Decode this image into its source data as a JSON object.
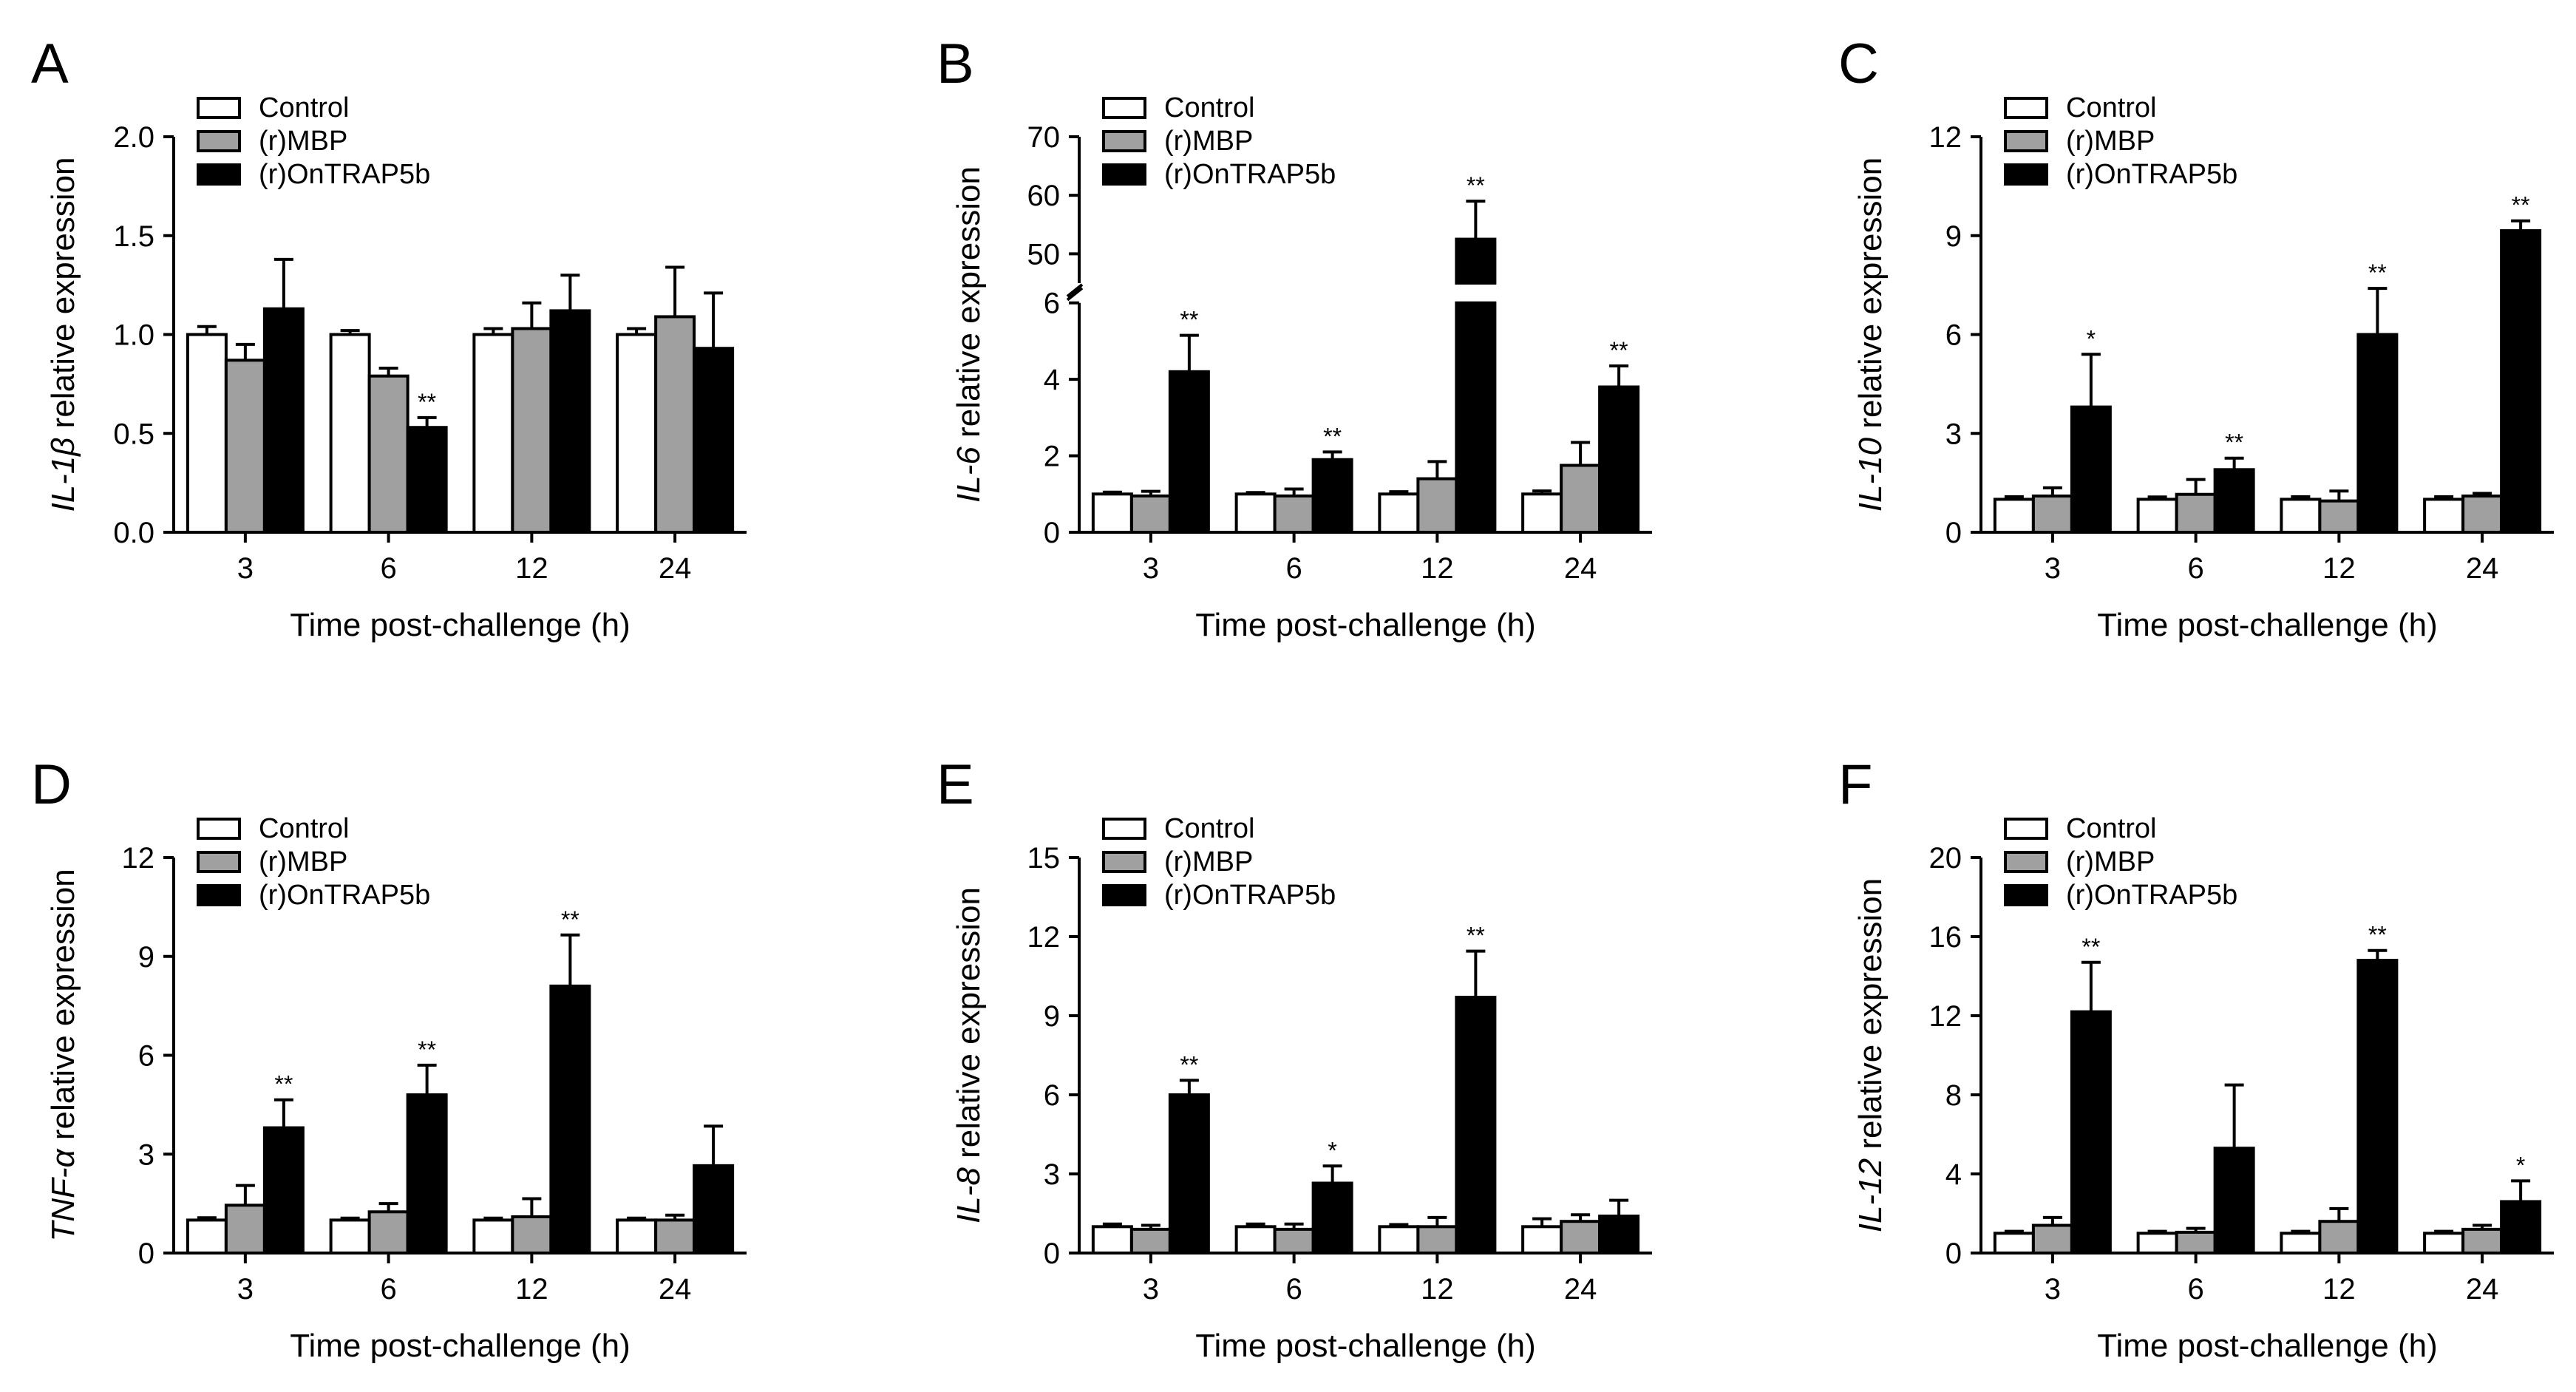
{
  "figure": {
    "common": {
      "legend": [
        "Control",
        "(r)MBP",
        "(r)OnTRAP5b"
      ],
      "xlabel": "Time post-challenge (h)",
      "categories": [
        "3",
        "6",
        "12",
        "24"
      ],
      "series_colors": [
        "#ffffff",
        "#a0a0a0",
        "#000000"
      ]
    }
  },
  "chart_data": [
    {
      "panel": "A",
      "type": "bar",
      "gene": "IL-1β",
      "ylabel_suffix": " relative expression",
      "title": "",
      "xlabel": "Time post-challenge (h)",
      "categories": [
        "3",
        "6",
        "12",
        "24"
      ],
      "ylim": [
        0,
        2.0
      ],
      "yticks": [
        "0.0",
        "0.5",
        "1.0",
        "1.5",
        "2.0"
      ],
      "broken": false,
      "series": [
        {
          "name": "Control",
          "values": [
            1.0,
            1.0,
            1.0,
            1.0
          ],
          "errors": [
            0.04,
            0.02,
            0.03,
            0.03
          ]
        },
        {
          "name": "(r)MBP",
          "values": [
            0.87,
            0.79,
            1.03,
            1.09
          ],
          "errors": [
            0.08,
            0.04,
            0.13,
            0.25
          ]
        },
        {
          "name": "(r)OnTRAP5b",
          "values": [
            1.13,
            0.53,
            1.12,
            0.93
          ],
          "errors": [
            0.25,
            0.05,
            0.18,
            0.28
          ]
        }
      ],
      "annotations": [
        {
          "category": "6",
          "series": "(r)OnTRAP5b",
          "text": "**"
        }
      ]
    },
    {
      "panel": "B",
      "type": "bar",
      "gene": "IL-6",
      "ylabel_suffix": " relative expression",
      "title": "",
      "xlabel": "Time post-challenge (h)",
      "categories": [
        "3",
        "6",
        "12",
        "24"
      ],
      "ylim": [
        0,
        70
      ],
      "yticks": [
        "0",
        "2",
        "4",
        "6",
        "50",
        "60",
        "70"
      ],
      "broken": true,
      "break_range": [
        6,
        45
      ],
      "series": [
        {
          "name": "Control",
          "values": [
            1.0,
            1.0,
            1.0,
            1.0
          ],
          "errors": [
            0.05,
            0.04,
            0.06,
            0.08
          ]
        },
        {
          "name": "(r)MBP",
          "values": [
            0.95,
            0.95,
            1.4,
            1.75
          ],
          "errors": [
            0.12,
            0.18,
            0.45,
            0.6
          ]
        },
        {
          "name": "(r)OnTRAP5b",
          "values": [
            4.2,
            1.9,
            52.5,
            3.8
          ],
          "errors": [
            0.95,
            0.2,
            6.5,
            0.55
          ]
        }
      ],
      "annotations": [
        {
          "category": "3",
          "series": "(r)OnTRAP5b",
          "text": "**"
        },
        {
          "category": "6",
          "series": "(r)OnTRAP5b",
          "text": "**"
        },
        {
          "category": "12",
          "series": "(r)OnTRAP5b",
          "text": "**"
        },
        {
          "category": "24",
          "series": "(r)OnTRAP5b",
          "text": "**"
        }
      ]
    },
    {
      "panel": "C",
      "type": "bar",
      "gene": "IL-10",
      "ylabel_suffix": " relative expression",
      "title": "",
      "xlabel": "Time post-challenge (h)",
      "categories": [
        "3",
        "6",
        "12",
        "24"
      ],
      "ylim": [
        0,
        12
      ],
      "yticks": [
        "0",
        "3",
        "6",
        "9",
        "12"
      ],
      "broken": false,
      "series": [
        {
          "name": "Control",
          "values": [
            1.0,
            1.0,
            1.0,
            1.0
          ],
          "errors": [
            0.08,
            0.07,
            0.08,
            0.08
          ]
        },
        {
          "name": "(r)MBP",
          "values": [
            1.1,
            1.15,
            0.95,
            1.1
          ],
          "errors": [
            0.25,
            0.45,
            0.3,
            0.08
          ]
        },
        {
          "name": "(r)OnTRAP5b",
          "values": [
            3.8,
            1.9,
            6.0,
            9.15
          ],
          "errors": [
            1.6,
            0.35,
            1.4,
            0.3
          ]
        }
      ],
      "annotations": [
        {
          "category": "3",
          "series": "(r)OnTRAP5b",
          "text": "*"
        },
        {
          "category": "6",
          "series": "(r)OnTRAP5b",
          "text": "**"
        },
        {
          "category": "12",
          "series": "(r)OnTRAP5b",
          "text": "**"
        },
        {
          "category": "24",
          "series": "(r)OnTRAP5b",
          "text": "**"
        }
      ]
    },
    {
      "panel": "D",
      "type": "bar",
      "gene": "TNF-α",
      "ylabel_suffix": " relative expression",
      "title": "",
      "xlabel": "Time post-challenge (h)",
      "categories": [
        "3",
        "6",
        "12",
        "24"
      ],
      "ylim": [
        0,
        12
      ],
      "yticks": [
        "0",
        "3",
        "6",
        "9",
        "12"
      ],
      "broken": false,
      "series": [
        {
          "name": "Control",
          "values": [
            1.0,
            1.0,
            1.0,
            1.0
          ],
          "errors": [
            0.07,
            0.06,
            0.06,
            0.06
          ]
        },
        {
          "name": "(r)MBP",
          "values": [
            1.45,
            1.25,
            1.1,
            1.0
          ],
          "errors": [
            0.6,
            0.25,
            0.55,
            0.15
          ]
        },
        {
          "name": "(r)OnTRAP5b",
          "values": [
            3.8,
            4.8,
            8.1,
            2.65
          ],
          "errors": [
            0.85,
            0.9,
            1.55,
            1.2
          ]
        }
      ],
      "annotations": [
        {
          "category": "3",
          "series": "(r)OnTRAP5b",
          "text": "**"
        },
        {
          "category": "6",
          "series": "(r)OnTRAP5b",
          "text": "**"
        },
        {
          "category": "12",
          "series": "(r)OnTRAP5b",
          "text": "**"
        }
      ]
    },
    {
      "panel": "E",
      "type": "bar",
      "gene": "IL-8",
      "ylabel_suffix": " relative expression",
      "title": "",
      "xlabel": "Time post-challenge (h)",
      "categories": [
        "3",
        "6",
        "12",
        "24"
      ],
      "ylim": [
        0,
        15
      ],
      "yticks": [
        "0",
        "3",
        "6",
        "9",
        "12",
        "15"
      ],
      "broken": false,
      "series": [
        {
          "name": "Control",
          "values": [
            1.0,
            1.0,
            1.0,
            1.0
          ],
          "errors": [
            0.1,
            0.1,
            0.08,
            0.3
          ]
        },
        {
          "name": "(r)MBP",
          "values": [
            0.9,
            0.9,
            1.0,
            1.2
          ],
          "errors": [
            0.15,
            0.2,
            0.35,
            0.25
          ]
        },
        {
          "name": "(r)OnTRAP5b",
          "values": [
            6.0,
            2.65,
            9.7,
            1.4
          ],
          "errors": [
            0.55,
            0.65,
            1.75,
            0.6
          ]
        }
      ],
      "annotations": [
        {
          "category": "3",
          "series": "(r)OnTRAP5b",
          "text": "**"
        },
        {
          "category": "6",
          "series": "(r)OnTRAP5b",
          "text": "*"
        },
        {
          "category": "12",
          "series": "(r)OnTRAP5b",
          "text": "**"
        }
      ]
    },
    {
      "panel": "F",
      "type": "bar",
      "gene": "IL-12",
      "ylabel_suffix": " relative expression",
      "title": "",
      "xlabel": "Time post-challenge (h)",
      "categories": [
        "3",
        "6",
        "12",
        "24"
      ],
      "ylim": [
        0,
        20
      ],
      "yticks": [
        "0",
        "4",
        "8",
        "12",
        "16",
        "20"
      ],
      "broken": false,
      "series": [
        {
          "name": "Control",
          "values": [
            1.0,
            1.0,
            1.0,
            1.0
          ],
          "errors": [
            0.1,
            0.1,
            0.1,
            0.1
          ]
        },
        {
          "name": "(r)MBP",
          "values": [
            1.4,
            1.05,
            1.6,
            1.2
          ],
          "errors": [
            0.4,
            0.2,
            0.65,
            0.2
          ]
        },
        {
          "name": "(r)OnTRAP5b",
          "values": [
            12.2,
            5.3,
            14.8,
            2.6
          ],
          "errors": [
            2.5,
            3.2,
            0.5,
            1.05
          ]
        }
      ],
      "annotations": [
        {
          "category": "3",
          "series": "(r)OnTRAP5b",
          "text": "**"
        },
        {
          "category": "12",
          "series": "(r)OnTRAP5b",
          "text": "**"
        },
        {
          "category": "24",
          "series": "(r)OnTRAP5b",
          "text": "*"
        }
      ]
    }
  ]
}
